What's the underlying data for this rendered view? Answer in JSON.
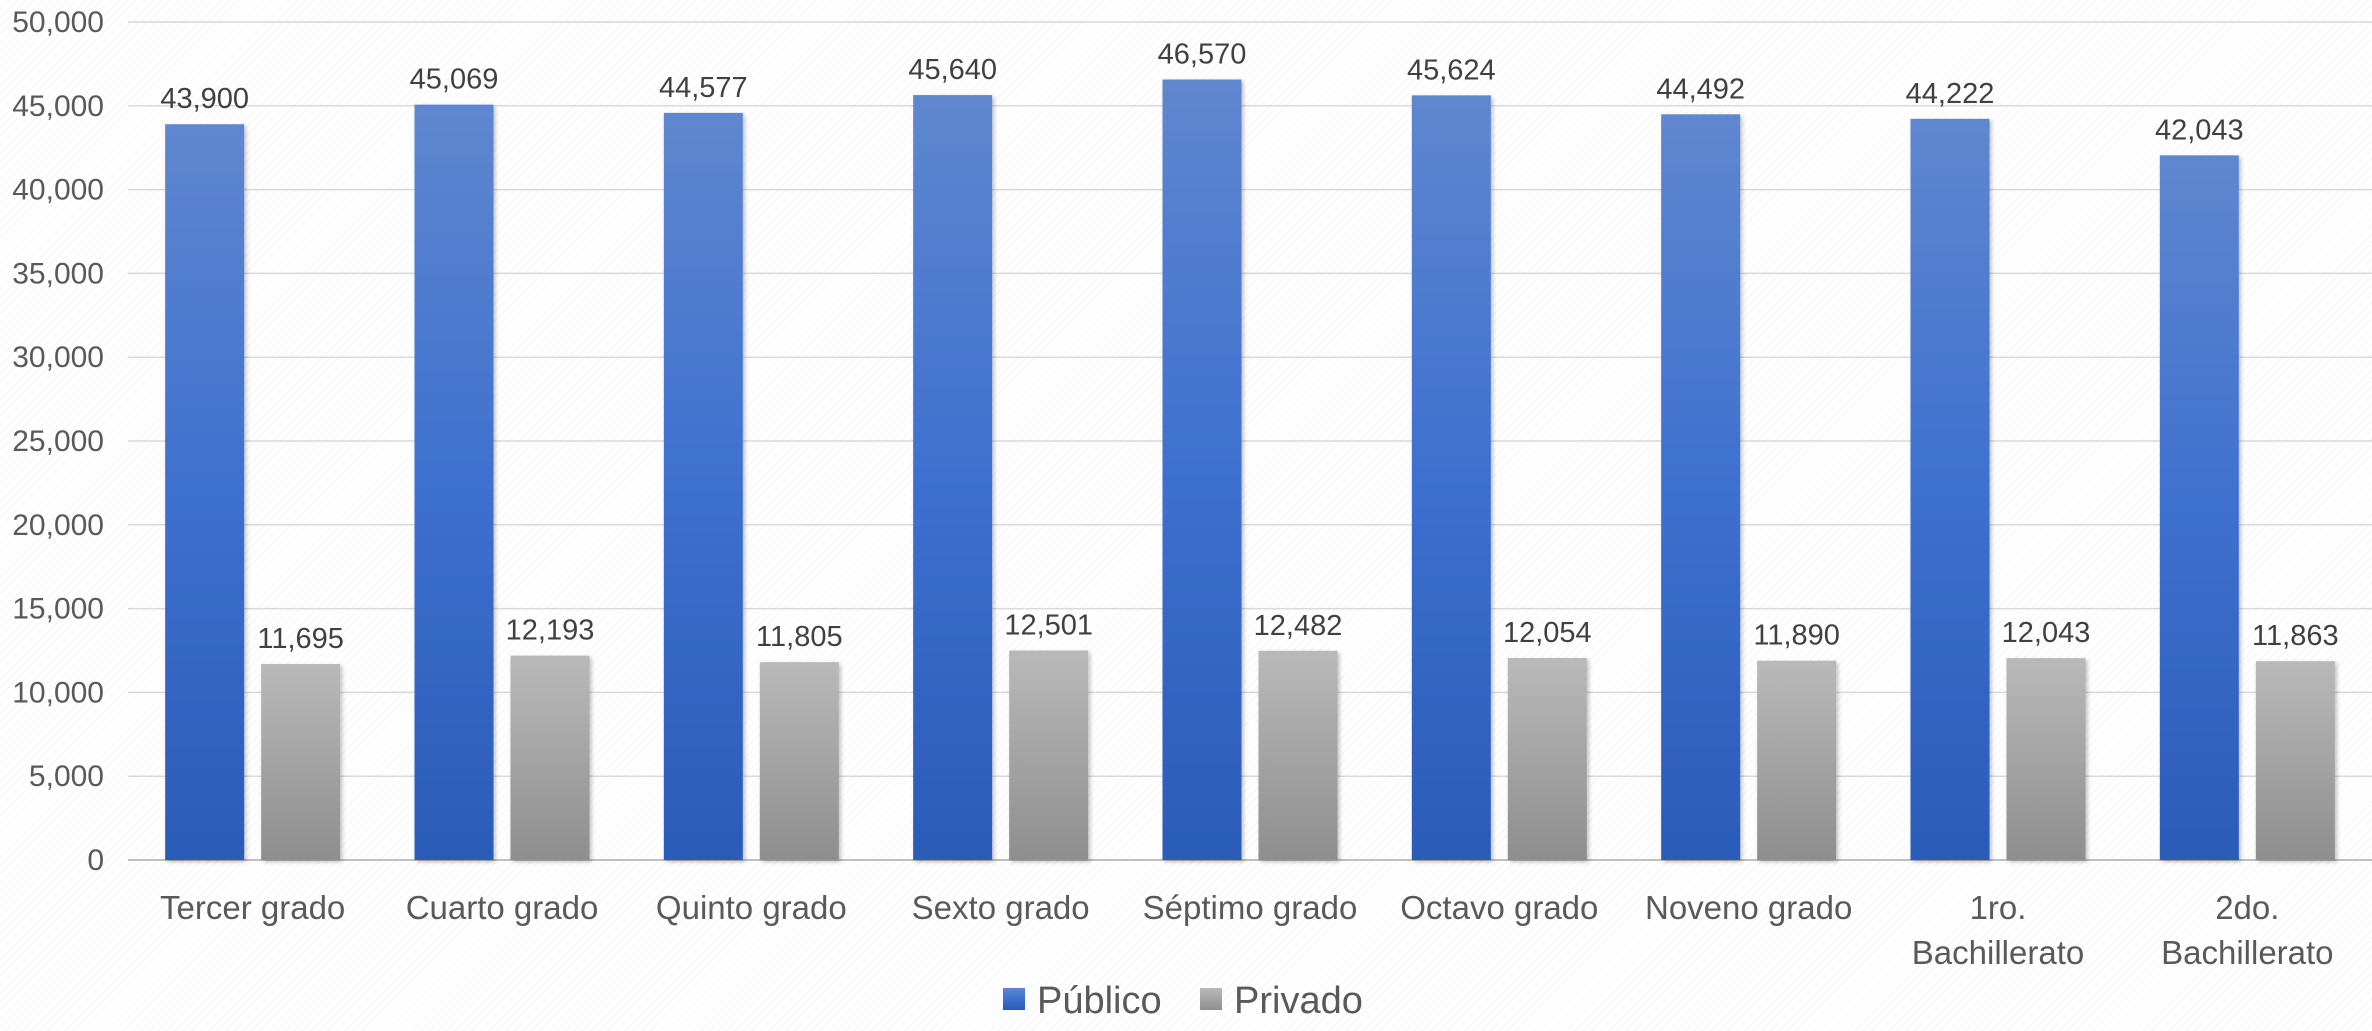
{
  "chart_data": {
    "type": "bar",
    "categories": [
      [
        "Tercer grado"
      ],
      [
        "Cuarto grado"
      ],
      [
        "Quinto grado"
      ],
      [
        "Sexto grado"
      ],
      [
        "Séptimo grado"
      ],
      [
        "Octavo grado"
      ],
      [
        "Noveno grado"
      ],
      [
        "1ro.",
        "Bachillerato"
      ],
      [
        "2do.",
        "Bachillerato"
      ]
    ],
    "series": [
      {
        "name": "Público",
        "values": [
          43900,
          45069,
          44577,
          45640,
          46570,
          45624,
          44492,
          44222,
          42043
        ],
        "labels": [
          "43,900",
          "45,069",
          "44,577",
          "45,640",
          "46,570",
          "45,624",
          "44,492",
          "44,222",
          "42,043"
        ],
        "color": "#3a6cc8"
      },
      {
        "name": "Privado",
        "values": [
          11695,
          12193,
          11805,
          12501,
          12482,
          12054,
          11890,
          12043,
          11863
        ],
        "labels": [
          "11,695",
          "12,193",
          "11,805",
          "12,501",
          "12,482",
          "12,054",
          "11,890",
          "12,043",
          "11,863"
        ],
        "color": "#a3a3a3"
      }
    ],
    "yticks": [
      "0",
      "5,000",
      "10,000",
      "15,000",
      "20,000",
      "25,000",
      "30,000",
      "35,000",
      "40,000",
      "45,000",
      "50,000"
    ],
    "ylim": [
      0,
      50000
    ],
    "ystep": 5000,
    "grid": true,
    "legend": "bottom-center",
    "title": "",
    "xlabel": "",
    "ylabel": ""
  }
}
